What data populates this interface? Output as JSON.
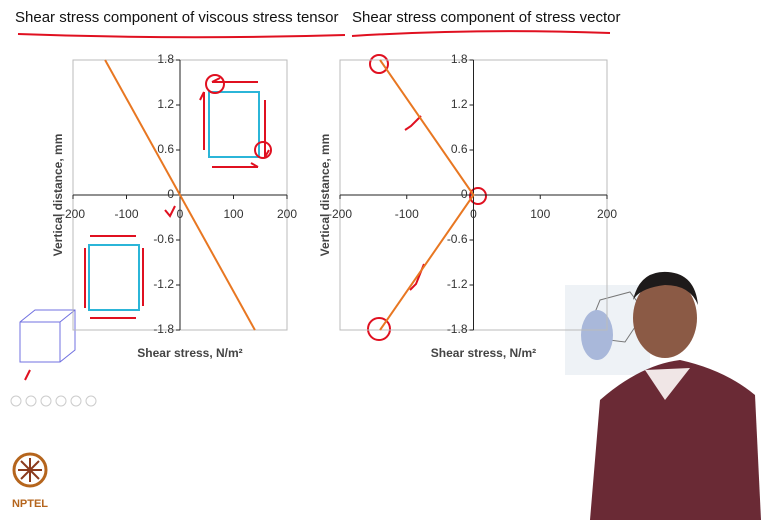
{
  "chart_data": [
    {
      "type": "line",
      "title": "Shear stress component of viscous stress tensor",
      "x_label": "Shear stress, N/m²",
      "y_label": "Vertical distance, mm",
      "xlim": [
        -200,
        200
      ],
      "ylim": [
        -1.8,
        1.8
      ],
      "xticks": [
        -200,
        -100,
        0,
        100,
        200
      ],
      "yticks": [
        1.8,
        1.2,
        0.6,
        0,
        -0.6,
        -1.2,
        -1.8
      ],
      "x": [
        -140,
        140
      ],
      "series": [
        {
          "color": "#e87722",
          "values": [
            1.8,
            -1.8
          ]
        }
      ]
    },
    {
      "type": "line",
      "title": "Shear stress component of stress vector",
      "x_label": "Shear stress, N/m²",
      "y_label": "Vertical distance, mm",
      "xlim": [
        -200,
        200
      ],
      "ylim": [
        -1.8,
        1.8
      ],
      "xticks": [
        -200,
        -100,
        0,
        100,
        200
      ],
      "yticks": [
        1.8,
        1.2,
        0.6,
        0,
        -0.6,
        -1.2,
        -1.8
      ],
      "x": [
        -140,
        0,
        -140
      ],
      "series": [
        {
          "color": "#e87722",
          "values": [
            1.8,
            0,
            -1.8
          ]
        }
      ]
    }
  ],
  "logo_text": "NPTEL"
}
